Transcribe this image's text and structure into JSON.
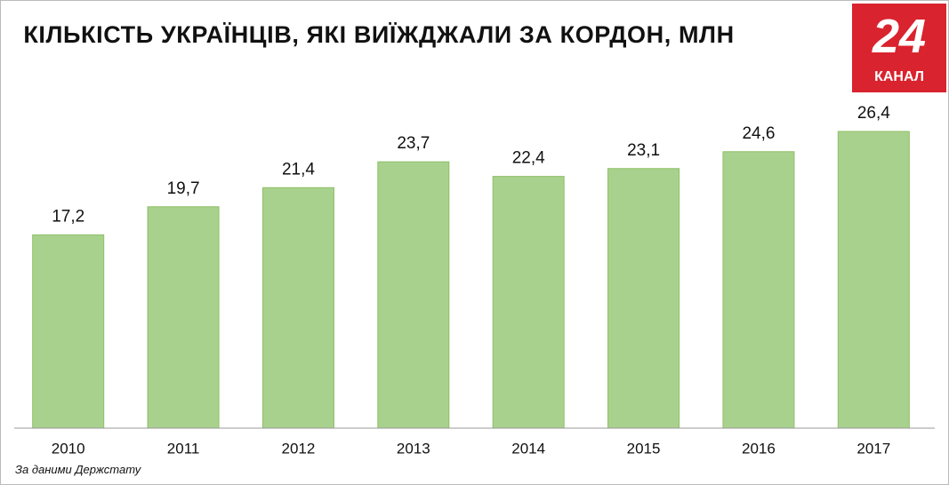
{
  "chart_data": {
    "type": "bar",
    "title": "КІЛЬКІСТЬ УКРАЇНЦІВ, ЯКІ ВИЇЖДЖАЛИ ЗА КОРДОН, МЛН",
    "source": "За даними Держстату",
    "logo": {
      "number": "24",
      "name": "КАНАЛ"
    },
    "categories": [
      "2010",
      "2011",
      "2012",
      "2013",
      "2014",
      "2015",
      "2016",
      "2017"
    ],
    "values": [
      17.2,
      19.7,
      21.4,
      23.7,
      22.4,
      23.1,
      24.6,
      26.4
    ],
    "value_labels": [
      "17,2",
      "19,7",
      "21,4",
      "23,7",
      "22,4",
      "23,1",
      "24,6",
      "26,4"
    ],
    "color": "#a9d18e",
    "ylim": [
      0,
      26.4
    ]
  }
}
